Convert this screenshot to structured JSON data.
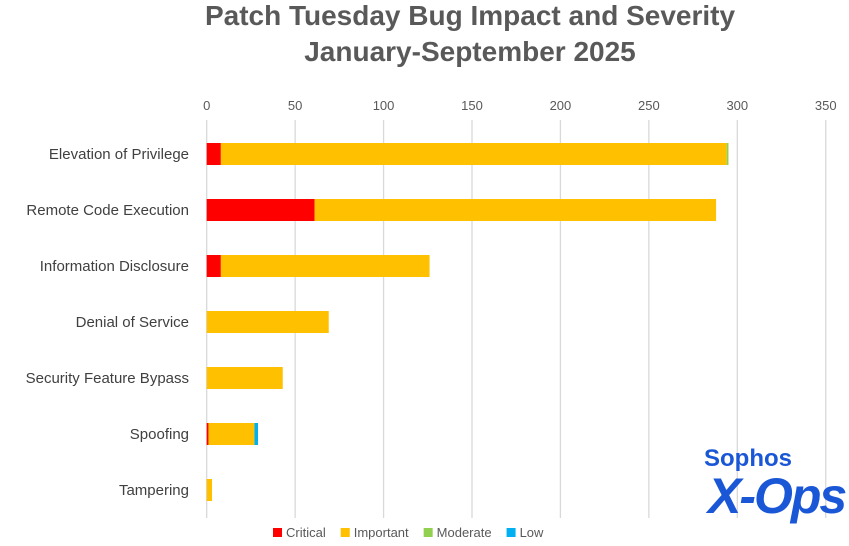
{
  "chart_data": {
    "type": "bar",
    "orientation": "horizontal-stacked",
    "title": "Patch Tuesday Bug Impact and Severity",
    "subtitle": "January-September 2025",
    "categories": [
      "Elevation of Privilege",
      "Remote Code Execution",
      "Information Disclosure",
      "Denial of Service",
      "Security Feature Bypass",
      "Spoofing",
      "Tampering"
    ],
    "series": [
      {
        "name": "Critical",
        "color": "#ff0000",
        "values": [
          8,
          61,
          8,
          0,
          0,
          1,
          0
        ]
      },
      {
        "name": "Important",
        "color": "#ffc000",
        "values": [
          286,
          227,
          118,
          69,
          43,
          26,
          3
        ]
      },
      {
        "name": "Moderate",
        "color": "#92d050",
        "values": [
          1,
          0,
          0,
          0,
          0,
          0,
          0
        ]
      },
      {
        "name": "Low",
        "color": "#00b0f0",
        "values": [
          0,
          0,
          0,
          0,
          0,
          2,
          0
        ]
      }
    ],
    "xlim": [
      0,
      350
    ],
    "xticks": [
      0,
      50,
      100,
      150,
      200,
      250,
      300,
      350
    ],
    "grid": true,
    "legend": "bottom"
  },
  "logo": {
    "line1": "Sophos",
    "line2": "X-Ops"
  }
}
